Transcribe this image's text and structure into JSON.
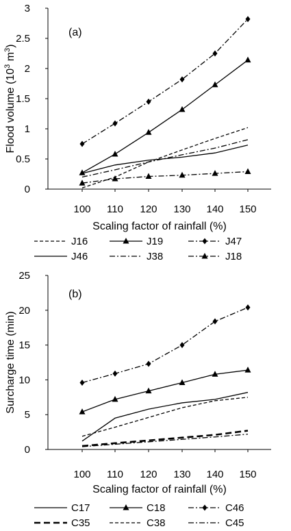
{
  "chart_data": [
    {
      "type": "line",
      "panel_label": "(a)",
      "xlabel": "Scaling factor of rainfall (%)",
      "ylabel": "Flood volume (10",
      "ylabel_sup1": "3",
      "ylabel_mid": " m",
      "ylabel_sup2": "3",
      "ylabel_end": ")",
      "x": [
        100,
        110,
        120,
        130,
        140,
        150
      ],
      "x_ticks": [
        "100",
        "110",
        "120",
        "130",
        "140",
        "150"
      ],
      "ylim": [
        0,
        3
      ],
      "y_ticks": [
        "0",
        "0.5",
        "1",
        "1.5",
        "2",
        "2.5",
        "3"
      ],
      "grid": false,
      "legend_position": "below",
      "series": [
        {
          "name": "J16",
          "values": [
            0.02,
            0.2,
            0.45,
            0.65,
            0.84,
            1.02
          ],
          "style": "dashed",
          "marker": "none"
        },
        {
          "name": "J19",
          "values": [
            0.27,
            0.58,
            0.94,
            1.32,
            1.73,
            2.14
          ],
          "style": "solid",
          "marker": "triangle"
        },
        {
          "name": "J47",
          "values": [
            0.75,
            1.09,
            1.45,
            1.82,
            2.25,
            2.82
          ],
          "style": "dashdot",
          "marker": "diamond"
        },
        {
          "name": "J46",
          "values": [
            0.26,
            0.4,
            0.48,
            0.53,
            0.6,
            0.73
          ],
          "style": "solid",
          "marker": "none"
        },
        {
          "name": "J38",
          "values": [
            0.2,
            0.32,
            0.45,
            0.57,
            0.68,
            0.82
          ],
          "style": "dashdot",
          "marker": "none"
        },
        {
          "name": "J18",
          "values": [
            0.1,
            0.17,
            0.21,
            0.23,
            0.26,
            0.29
          ],
          "style": "dashdot",
          "marker": "triangle"
        }
      ]
    },
    {
      "type": "line",
      "panel_label": "(b)",
      "xlabel": "Scaling factor of rainfall (%)",
      "ylabel": "Surcharge time (min)",
      "x": [
        100,
        110,
        120,
        130,
        140,
        150
      ],
      "x_ticks": [
        "100",
        "110",
        "120",
        "130",
        "140",
        "150"
      ],
      "ylim": [
        0,
        25
      ],
      "y_ticks": [
        "0",
        "5",
        "10",
        "15",
        "20",
        "25"
      ],
      "grid": false,
      "legend_position": "below",
      "series": [
        {
          "name": "C17",
          "values": [
            1.2,
            4.5,
            5.8,
            6.7,
            7.2,
            8.2
          ],
          "style": "solid",
          "marker": "none"
        },
        {
          "name": "C18",
          "values": [
            5.4,
            7.2,
            8.4,
            9.6,
            10.8,
            11.4
          ],
          "style": "solid",
          "marker": "triangle"
        },
        {
          "name": "C46",
          "values": [
            9.6,
            10.9,
            12.3,
            15.0,
            18.4,
            20.4
          ],
          "style": "dashdot",
          "marker": "diamond"
        },
        {
          "name": "C35",
          "values": [
            0.5,
            0.9,
            1.3,
            1.7,
            2.1,
            2.7
          ],
          "style": "thickdash",
          "marker": "none"
        },
        {
          "name": "C38",
          "values": [
            1.9,
            3.2,
            4.6,
            6.0,
            7.0,
            7.5
          ],
          "style": "dashed",
          "marker": "none"
        },
        {
          "name": "C45",
          "values": [
            0.4,
            0.75,
            1.1,
            1.45,
            1.8,
            2.2
          ],
          "style": "dashdot",
          "marker": "none"
        }
      ]
    }
  ]
}
